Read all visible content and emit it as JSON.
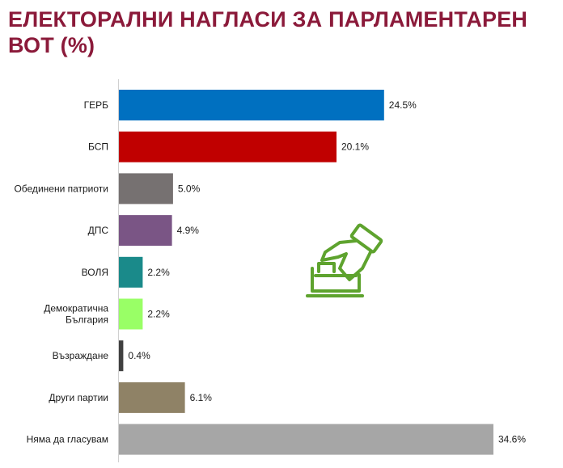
{
  "header": {
    "title": "ЕЛЕКТОРАЛНИ НАГЛАСИ ЗА ПАРЛАМЕНТАРЕН ВОТ (%)"
  },
  "icon": {
    "name": "ballot-box-voting-icon",
    "color": "#5EA32E"
  },
  "chart_data": {
    "type": "bar",
    "orientation": "horizontal",
    "title": "ЕЛЕКТОРАЛНИ НАГЛАСИ ЗА ПАРЛАМЕНТАРЕН ВОТ (%)",
    "xlabel": "",
    "ylabel": "",
    "xlim": [
      0,
      34.6
    ],
    "grid": false,
    "categories": [
      "ГЕРБ",
      "БСП",
      "Обединени патриоти",
      "ДПС",
      "ВОЛЯ",
      "Демократична България",
      "Възраждане",
      "Други партии",
      "Няма да гласувам"
    ],
    "category_lines": [
      [
        "ГЕРБ"
      ],
      [
        "БСП"
      ],
      [
        "Обединени патриоти"
      ],
      [
        "ДПС"
      ],
      [
        "ВОЛЯ"
      ],
      [
        "Демократична",
        "България"
      ],
      [
        "Възраждане"
      ],
      [
        "Други партии"
      ],
      [
        "Няма да гласувам"
      ]
    ],
    "values": [
      24.5,
      20.1,
      5.0,
      4.9,
      2.2,
      2.2,
      0.4,
      6.1,
      34.6
    ],
    "value_labels": [
      "24.5%",
      "20.1%",
      "5.0%",
      "4.9%",
      "2.2%",
      "2.2%",
      "0.4%",
      "6.1%",
      "34.6%"
    ],
    "colors": [
      "#0070C0",
      "#C00000",
      "#767171",
      "#7A5585",
      "#1A8A8A",
      "#99FF66",
      "#404040",
      "#8F8266",
      "#A6A6A6"
    ]
  }
}
